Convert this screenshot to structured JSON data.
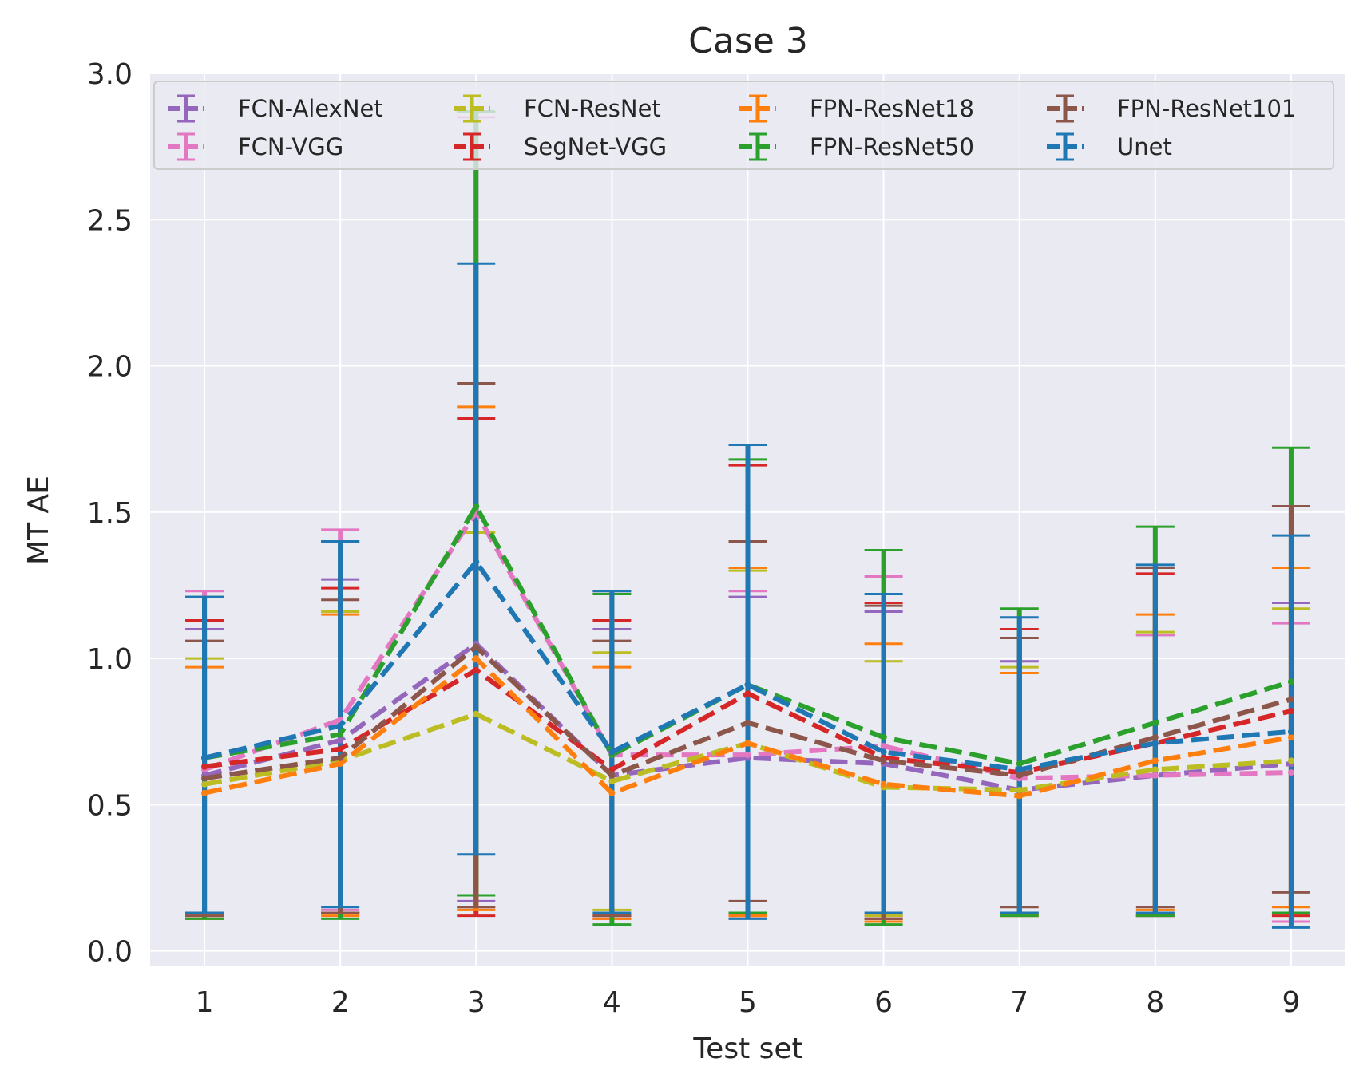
{
  "chart_data": {
    "type": "line",
    "title": "Case 3",
    "xlabel": "Test set",
    "ylabel": "MT AE",
    "x": [
      1,
      2,
      3,
      4,
      5,
      6,
      7,
      8,
      9
    ],
    "xlim": [
      0.6,
      9.4
    ],
    "ylim": [
      -0.05,
      3.0
    ],
    "yticks": [
      0.0,
      0.5,
      1.0,
      1.5,
      2.0,
      2.5,
      3.0
    ],
    "ytick_labels": [
      "0.0",
      "0.5",
      "1.0",
      "1.5",
      "2.0",
      "2.5",
      "3.0"
    ],
    "xtick_labels": [
      "1",
      "2",
      "3",
      "4",
      "5",
      "6",
      "7",
      "8",
      "9"
    ],
    "grid": true,
    "legend": {
      "placement": "top",
      "columns": 4
    },
    "series": [
      {
        "name": "FCN-AlexNet",
        "color": "#9467bd",
        "values": [
          0.6,
          0.72,
          1.05,
          0.6,
          0.66,
          0.64,
          0.55,
          0.6,
          0.64
        ],
        "lower": [
          0.12,
          0.13,
          0.17,
          0.11,
          0.12,
          0.12,
          0.12,
          0.12,
          0.1
        ],
        "upper": [
          1.1,
          1.27,
          1.94,
          1.1,
          1.21,
          1.16,
          0.99,
          1.08,
          1.19
        ]
      },
      {
        "name": "FCN-VGG",
        "color": "#e377c2",
        "values": [
          0.62,
          0.79,
          1.5,
          0.67,
          0.67,
          0.7,
          0.59,
          0.6,
          0.61
        ],
        "lower": [
          0.12,
          0.14,
          0.15,
          0.11,
          0.12,
          0.12,
          0.12,
          0.12,
          0.1
        ],
        "upper": [
          1.23,
          1.44,
          2.85,
          1.23,
          1.23,
          1.28,
          1.07,
          1.08,
          1.12
        ]
      },
      {
        "name": "FCN-ResNet",
        "color": "#bcbd22",
        "values": [
          0.57,
          0.65,
          0.81,
          0.58,
          0.71,
          0.56,
          0.55,
          0.62,
          0.65
        ],
        "lower": [
          0.12,
          0.13,
          0.19,
          0.14,
          0.12,
          0.12,
          0.12,
          0.13,
          0.12
        ],
        "upper": [
          1.0,
          1.16,
          1.43,
          1.02,
          1.3,
          0.99,
          0.97,
          1.09,
          1.17
        ]
      },
      {
        "name": "SegNet-VGG",
        "color": "#d62728",
        "values": [
          0.63,
          0.69,
          0.96,
          0.62,
          0.88,
          0.66,
          0.61,
          0.71,
          0.82
        ],
        "lower": [
          0.13,
          0.13,
          0.12,
          0.12,
          0.12,
          0.11,
          0.13,
          0.12,
          0.12
        ],
        "upper": [
          1.13,
          1.24,
          1.82,
          1.13,
          1.66,
          1.19,
          1.1,
          1.29,
          1.52
        ]
      },
      {
        "name": "FPN-ResNet18",
        "color": "#ff7f0e",
        "values": [
          0.54,
          0.64,
          1.0,
          0.54,
          0.71,
          0.57,
          0.53,
          0.65,
          0.73
        ],
        "lower": [
          0.11,
          0.12,
          0.14,
          0.11,
          0.12,
          0.1,
          0.12,
          0.14,
          0.15
        ],
        "upper": [
          0.97,
          1.15,
          1.86,
          0.97,
          1.31,
          1.05,
          0.95,
          1.15,
          1.31
        ]
      },
      {
        "name": "FPN-ResNet50",
        "color": "#2ca02c",
        "values": [
          0.66,
          0.74,
          1.52,
          0.67,
          0.91,
          0.73,
          0.64,
          0.78,
          0.92
        ],
        "lower": [
          0.11,
          0.11,
          0.19,
          0.09,
          0.13,
          0.09,
          0.12,
          0.12,
          0.13
        ],
        "upper": [
          1.21,
          1.4,
          2.87,
          1.22,
          1.68,
          1.37,
          1.17,
          1.45,
          1.72
        ]
      },
      {
        "name": "FPN-ResNet101",
        "color": "#8c564b",
        "values": [
          0.59,
          0.66,
          1.04,
          0.6,
          0.78,
          0.65,
          0.6,
          0.73,
          0.86
        ],
        "lower": [
          0.12,
          0.13,
          0.15,
          0.12,
          0.17,
          0.11,
          0.15,
          0.15,
          0.2
        ],
        "upper": [
          1.06,
          1.2,
          1.94,
          1.06,
          1.4,
          1.18,
          1.07,
          1.31,
          1.52
        ]
      },
      {
        "name": "Unet",
        "color": "#1f77b4",
        "values": [
          0.66,
          0.77,
          1.33,
          0.68,
          0.91,
          0.68,
          0.62,
          0.71,
          0.75
        ],
        "lower": [
          0.13,
          0.15,
          0.33,
          0.13,
          0.11,
          0.13,
          0.13,
          0.13,
          0.08
        ],
        "upper": [
          1.21,
          1.4,
          2.35,
          1.23,
          1.73,
          1.22,
          1.14,
          1.32,
          1.42
        ]
      }
    ]
  }
}
